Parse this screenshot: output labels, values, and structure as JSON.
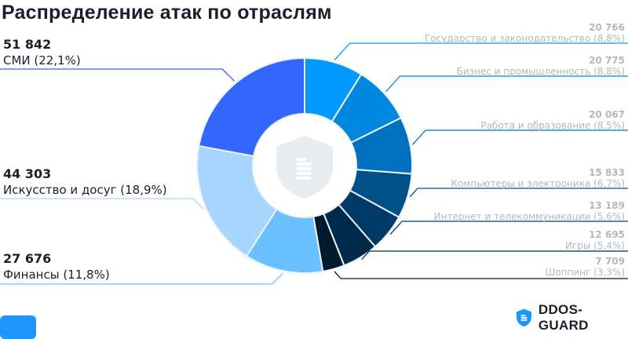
{
  "chart_data": {
    "type": "pie",
    "donut": true,
    "title": "Распределение атак по отраслям",
    "start": "top",
    "direction": "clockwise",
    "slices": [
      {
        "label": "Государство и законодательство",
        "value": 20766,
        "percent": "8,8%",
        "value_text": "20 766",
        "color": "#0099ff",
        "side": "right"
      },
      {
        "label": "Бизнес и промышленность",
        "value": 20775,
        "percent": "8,8%",
        "value_text": "20 775",
        "color": "#0088e0",
        "side": "right"
      },
      {
        "label": "Работа и образование",
        "value": 20067,
        "percent": "8,5%",
        "value_text": "20 067",
        "color": "#0070c0",
        "side": "right"
      },
      {
        "label": "Компьютеры и электроника",
        "value": 15833,
        "percent": "6,7%",
        "value_text": "15 833",
        "color": "#00508a",
        "side": "right"
      },
      {
        "label": "Интернет и телекоммуникации",
        "value": 13189,
        "percent": "5,6%",
        "value_text": "13 189",
        "color": "#003a66",
        "side": "right"
      },
      {
        "label": "Игры",
        "value": 12695,
        "percent": "5,4%",
        "value_text": "12 695",
        "color": "#002a4a",
        "side": "right"
      },
      {
        "label": "Шоппинг",
        "value": 7709,
        "percent": "3,3%",
        "value_text": "7 709",
        "color": "#001a2e",
        "side": "right"
      },
      {
        "label": "Финансы",
        "value": 27676,
        "percent": "11,8%",
        "value_text": "27 676",
        "color": "#6ac0ff",
        "side": "left"
      },
      {
        "label": "Искусство и досуг",
        "value": 44303,
        "percent": "18,9%",
        "value_text": "44 303",
        "color": "#a6d6ff",
        "side": "left"
      },
      {
        "label": "СМИ",
        "value": 51842,
        "percent": "22,1%",
        "value_text": "51 842",
        "color": "#3366ff",
        "side": "left"
      }
    ]
  },
  "labels": [
    {
      "num": "20 766",
      "text": "Государство и законодательство (8,8%)"
    },
    {
      "num": "20 775",
      "text": "Бизнес и промышленность (8,8%)"
    },
    {
      "num": "20 067",
      "text": "Работа и образование (8,5%)"
    },
    {
      "num": "15 833",
      "text": "Компьютеры и электроника (6,7%)"
    },
    {
      "num": "13 189",
      "text": "Интернет и телекоммуникации (5,6%)"
    },
    {
      "num": "12 695",
      "text": "Игры (5,4%)"
    },
    {
      "num": "7 709",
      "text": "Шоппинг (3,3%)"
    },
    {
      "num": "27 676",
      "text": "Финансы (11,8%)"
    },
    {
      "num": "44 303",
      "text": "Искусство и досуг (18,9%)"
    },
    {
      "num": "51 842",
      "text": "СМИ (22,1%)"
    }
  ],
  "brand": {
    "name": "DDOS-GUARD",
    "color": "#1e96ff"
  },
  "center_icon": "shield-building-icon"
}
